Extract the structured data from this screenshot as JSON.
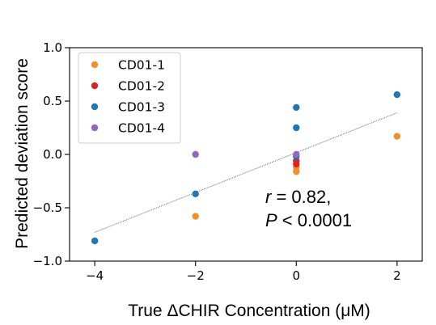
{
  "chart_data": {
    "type": "scatter",
    "xlabel": "True ΔCHIR Concentration (μM)",
    "ylabel": "Predicted deviation score",
    "xlim": [
      -4.5,
      2.5
    ],
    "ylim": [
      -1.0,
      1.0
    ],
    "xticks": [
      -4,
      -2,
      0,
      2
    ],
    "xtick_labels": [
      "−4",
      "−2",
      "0",
      "2"
    ],
    "yticks": [
      -1.0,
      -0.5,
      0.0,
      0.5,
      1.0
    ],
    "ytick_labels": [
      "−1.0",
      "−0.5",
      "0.0",
      "0.5",
      "1.0"
    ],
    "grid": false,
    "legend_position": "top-left",
    "series": [
      {
        "name": "CD01-1",
        "color": "#f28e2b",
        "points": [
          [
            -4,
            -0.81
          ],
          [
            -2,
            -0.58
          ],
          [
            0,
            -0.12
          ],
          [
            0,
            -0.16
          ],
          [
            2,
            0.17
          ]
        ]
      },
      {
        "name": "CD01-2",
        "color": "#d62728",
        "points": [
          [
            0,
            -0.06
          ],
          [
            0,
            -0.09
          ]
        ]
      },
      {
        "name": "CD01-3",
        "color": "#1f77b4",
        "points": [
          [
            -4,
            -0.81
          ],
          [
            -2,
            -0.37
          ],
          [
            0,
            0.44
          ],
          [
            0,
            0.25
          ],
          [
            0,
            -0.02
          ],
          [
            2,
            0.56
          ]
        ]
      },
      {
        "name": "CD01-4",
        "color": "#9467bd",
        "points": [
          [
            -2,
            0.0
          ],
          [
            0,
            0.0
          ]
        ]
      }
    ],
    "fit_line": {
      "x": [
        -4,
        2
      ],
      "y": [
        -0.73,
        0.39
      ],
      "color": "#777777",
      "style": "dotted"
    },
    "annotation": {
      "r_symbol": "r",
      "r_text": " = 0.82,",
      "p_symbol": "P",
      "p_text": " < 0.0001"
    }
  }
}
